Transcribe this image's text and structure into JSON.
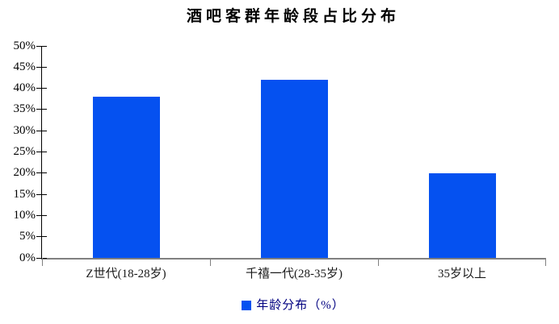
{
  "chart_data": {
    "type": "bar",
    "title": "酒吧客群年龄段占比分布",
    "categories": [
      "Z世代(18-28岁)",
      "千禧一代(28-35岁)",
      "35岁以上"
    ],
    "series": [
      {
        "name": "年龄分布（%）",
        "values": [
          38,
          42,
          20
        ]
      }
    ],
    "xlabel": "",
    "ylabel": "",
    "ylim": [
      0,
      50
    ],
    "ytick_step": 5,
    "ytick_suffix": "%",
    "grid": false,
    "legend_position": "bottom",
    "bar_color": "#0551f0"
  },
  "legend": {
    "label": "年龄分布（%）",
    "swatch_color": "#0551f0",
    "text_color": "#000080"
  },
  "colors": {
    "bar": "#0551f0",
    "y_axis_line": "#000000",
    "x_axis_line": "#808080",
    "title_text": "#000000",
    "axis_label_text": "#1a1a1a",
    "legend_text": "#000080",
    "background": "#ffffff"
  }
}
